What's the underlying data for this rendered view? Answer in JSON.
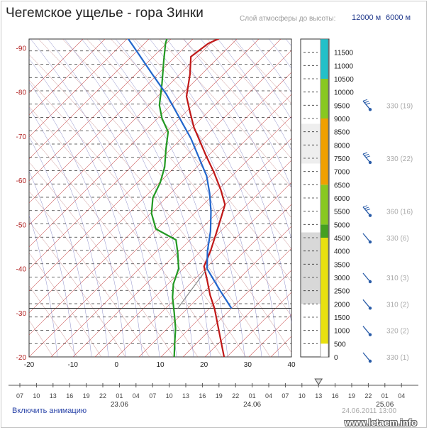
{
  "header": {
    "title": "Чегемское ущелье - гора Зинки",
    "height_label": "Слой атмосферы до высоты:",
    "height_options": [
      "12000 м",
      "6000 м"
    ]
  },
  "colors": {
    "dry_adiabat": "#c03030",
    "isotherm": "#c03030",
    "moist_adiabat": "#6a6ab8",
    "temperature_line": "#c01818",
    "dewpoint_line": "#229922",
    "parcel_line": "#2266cc",
    "zero_cloud": "#ffff00",
    "cyan": "#22c0c8",
    "green": "#88c820",
    "dark_green": "#44a020",
    "orange": "#f0a000",
    "yellow": "#e8e010"
  },
  "chart_data": {
    "type": "line",
    "x_axis": {
      "min": -20,
      "max": 40,
      "ticks": [
        "-20",
        "-10",
        "0",
        "10",
        "20",
        "30",
        "40"
      ]
    },
    "y_axis": {
      "min": -20,
      "max": -92,
      "ticks": [
        "-20",
        "-30",
        "-40",
        "-50",
        "-60",
        "-70",
        "-80",
        "-90"
      ]
    },
    "grid": true,
    "series": [
      {
        "key": "temperature",
        "points": [
          [
            24.6,
            -20
          ],
          [
            24.0,
            -23
          ],
          [
            23.2,
            -27
          ],
          [
            22.4,
            -31
          ],
          [
            21.4,
            -34
          ],
          [
            20.7,
            -37.5
          ],
          [
            20.0,
            -40.5
          ],
          [
            21.5,
            -44
          ],
          [
            22.8,
            -48
          ],
          [
            23.9,
            -51.5
          ],
          [
            24.8,
            -54.5
          ],
          [
            23.8,
            -58
          ],
          [
            22.2,
            -62
          ],
          [
            20.5,
            -65.5
          ],
          [
            19.0,
            -69
          ],
          [
            17.7,
            -72
          ],
          [
            16.8,
            -75.5
          ],
          [
            16.0,
            -79
          ],
          [
            16.8,
            -84
          ],
          [
            17.0,
            -88
          ],
          [
            21.0,
            -91
          ],
          [
            25.5,
            -93
          ]
        ]
      },
      {
        "key": "dewpoint",
        "points": [
          [
            13.2,
            -20
          ],
          [
            13.3,
            -23
          ],
          [
            13.5,
            -26.5
          ],
          [
            13.2,
            -30
          ],
          [
            12.8,
            -33.5
          ],
          [
            13.0,
            -36.5
          ],
          [
            14.2,
            -40
          ],
          [
            14.0,
            -43.5
          ],
          [
            13.6,
            -46.5
          ],
          [
            9.0,
            -49
          ],
          [
            8.0,
            -52.5
          ],
          [
            8.3,
            -56
          ],
          [
            10.0,
            -59.5
          ],
          [
            11.0,
            -63
          ],
          [
            11.3,
            -67
          ],
          [
            11.8,
            -71
          ],
          [
            10.4,
            -74
          ],
          [
            9.8,
            -77
          ],
          [
            10.4,
            -82
          ],
          [
            10.8,
            -87
          ],
          [
            11.2,
            -91
          ],
          [
            11.8,
            -93
          ]
        ]
      },
      {
        "key": "parcel",
        "points": [
          [
            26.3,
            -31
          ],
          [
            23.7,
            -35
          ],
          [
            20.7,
            -40
          ],
          [
            20.8,
            -44
          ],
          [
            21.5,
            -48.5
          ],
          [
            21.6,
            -53
          ],
          [
            21.3,
            -57
          ],
          [
            20.6,
            -61
          ],
          [
            18.9,
            -65
          ],
          [
            17.0,
            -69.5
          ],
          [
            14.2,
            -74.5
          ],
          [
            11.4,
            -79.5
          ],
          [
            8.2,
            -84
          ],
          [
            4.8,
            -89
          ],
          [
            2.0,
            -93
          ]
        ]
      }
    ],
    "cloud_bar": [
      {
        "from": 0,
        "to": 500,
        "color": "#ffffff"
      },
      {
        "from": 500,
        "to": 4500,
        "color": "#e8e010"
      },
      {
        "from": 4500,
        "to": 5000,
        "color": "#44a020"
      },
      {
        "from": 5000,
        "to": 6500,
        "color": "#88c820"
      },
      {
        "from": 6500,
        "to": 9000,
        "color": "#f0a000"
      },
      {
        "from": 9000,
        "to": 10500,
        "color": "#88c820"
      },
      {
        "from": 10500,
        "to": 12000,
        "color": "#22c0c8"
      }
    ],
    "altitudes": [
      "0",
      "500",
      "1000",
      "1500",
      "2000",
      "2500",
      "3000",
      "3500",
      "4000",
      "4500",
      "5000",
      "5500",
      "6000",
      "6500",
      "7000",
      "7500",
      "8000",
      "8500",
      "9000",
      "9500",
      "10000",
      "10500",
      "11000",
      "11500"
    ],
    "winds": [
      "330 (19)",
      "330 (22)",
      "360 (16)",
      "330 (6)",
      "310 (3)",
      "310 (2)",
      "320 (2)",
      "330 (1)"
    ],
    "timeline": {
      "hours": [
        "07",
        "10",
        "13",
        "16",
        "19",
        "22",
        "01",
        "04",
        "07",
        "10",
        "13",
        "16",
        "19",
        "22",
        "01",
        "04",
        "07",
        "10",
        "13",
        "16",
        "19",
        "22",
        "01",
        "04"
      ],
      "dates": [
        "23.06",
        "24.06",
        "25.06"
      ],
      "selected_hour_index": 18
    }
  },
  "footer": {
    "animation_link": "Включить анимацию",
    "datestamp": "24.06.2011 13:00",
    "watermark": "www.letaem.info"
  }
}
